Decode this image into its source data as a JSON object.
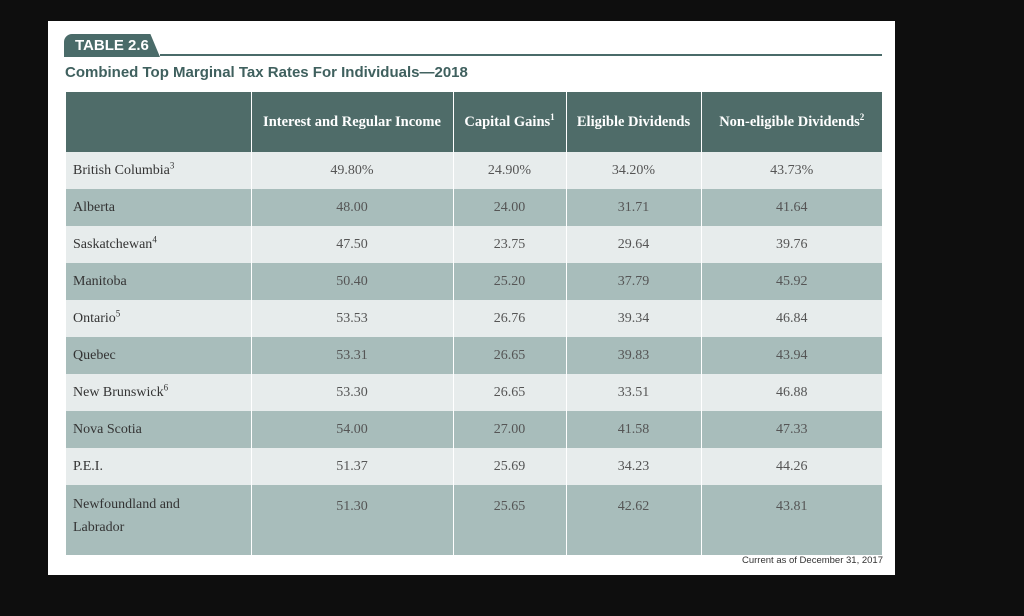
{
  "table_label": "TABLE 2.6",
  "title": "Combined Top Marginal Tax Rates For Individuals—2018",
  "headers": [
    {
      "text": "",
      "sup": ""
    },
    {
      "text": "Interest and Regular Income",
      "sup": ""
    },
    {
      "text": "Capital Gains",
      "sup": "1"
    },
    {
      "text": "Eligible Dividends",
      "sup": ""
    },
    {
      "text": "Non-eligible Dividends",
      "sup": "2"
    }
  ],
  "rows": [
    {
      "province": "British Columbia",
      "sup": "3",
      "values": [
        "49.80%",
        "24.90%",
        "34.20%",
        "43.73%"
      ]
    },
    {
      "province": "Alberta",
      "sup": "",
      "values": [
        "48.00",
        "24.00",
        "31.71",
        "41.64"
      ]
    },
    {
      "province": "Saskatchewan",
      "sup": "4",
      "values": [
        "47.50",
        "23.75",
        "29.64",
        "39.76"
      ]
    },
    {
      "province": "Manitoba",
      "sup": "",
      "values": [
        "50.40",
        "25.20",
        "37.79",
        "45.92"
      ]
    },
    {
      "province": "Ontario",
      "sup": "5",
      "values": [
        "53.53",
        "26.76",
        "39.34",
        "46.84"
      ]
    },
    {
      "province": "Quebec",
      "sup": "",
      "values": [
        "53.31",
        "26.65",
        "39.83",
        "43.94"
      ]
    },
    {
      "province": "New Brunswick",
      "sup": "6",
      "values": [
        "53.30",
        "26.65",
        "33.51",
        "46.88"
      ]
    },
    {
      "province": "Nova Scotia",
      "sup": "",
      "values": [
        "54.00",
        "27.00",
        "41.58",
        "47.33"
      ]
    },
    {
      "province": "P.E.I.",
      "sup": "",
      "values": [
        "51.37",
        "25.69",
        "34.23",
        "44.26"
      ]
    },
    {
      "province": "Newfoundland and Labrador",
      "sup": "",
      "values": [
        "51.30",
        "25.65",
        "42.62",
        "43.81"
      ]
    }
  ],
  "footnote": "Current as of December 31, 2017",
  "colors": {
    "header_bg": "#4f6c69",
    "row_light": "#e7ecec",
    "row_dark": "#a8bdbb",
    "accent": "#4a6b69"
  }
}
